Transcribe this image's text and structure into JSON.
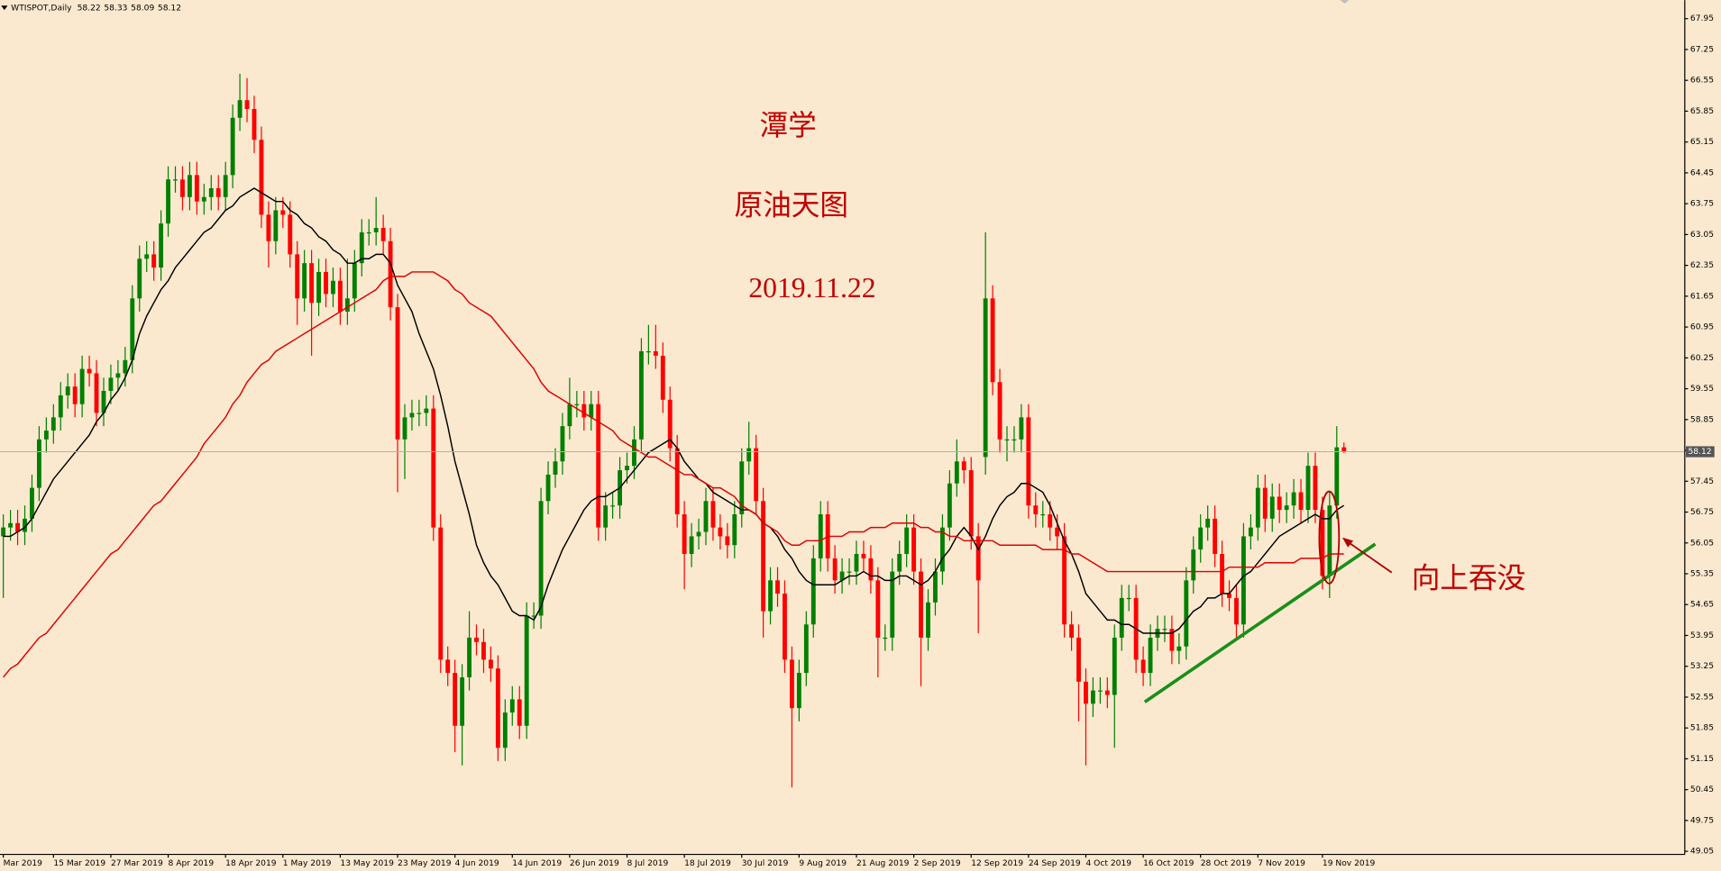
{
  "chart_data": {
    "type": "candlestick",
    "title": "WTISPOT,Daily",
    "annotations": [
      "潭学",
      "原油天图",
      "2019.11.22",
      "向上吞没"
    ],
    "up_color": "#008000",
    "down_color": "#ff0000",
    "grid": false,
    "last_price_line": true,
    "ylim": [
      48.98,
      68.37
    ],
    "yticks": [
      49.05,
      49.75,
      50.45,
      51.15,
      51.85,
      52.55,
      53.25,
      53.95,
      54.65,
      55.35,
      56.05,
      56.75,
      57.45,
      58.15,
      58.85,
      59.55,
      60.25,
      60.95,
      61.65,
      62.35,
      63.05,
      63.75,
      64.45,
      65.15,
      65.85,
      66.55,
      67.25,
      67.95
    ],
    "categories": [
      "Mar 2019",
      null,
      null,
      null,
      null,
      null,
      null,
      "15 Mar 2019",
      null,
      null,
      null,
      null,
      null,
      null,
      null,
      "27 Mar 2019",
      null,
      null,
      null,
      null,
      null,
      null,
      null,
      "8 Apr 2019",
      null,
      null,
      null,
      null,
      null,
      null,
      null,
      "18 Apr 2019",
      null,
      null,
      null,
      null,
      null,
      null,
      null,
      "1 May 2019",
      null,
      null,
      null,
      null,
      null,
      null,
      null,
      "13 May 2019",
      null,
      null,
      null,
      null,
      null,
      null,
      null,
      "23 May 2019",
      null,
      null,
      null,
      null,
      null,
      null,
      null,
      "4 Jun 2019",
      null,
      null,
      null,
      null,
      null,
      null,
      null,
      "14 Jun 2019",
      null,
      null,
      null,
      null,
      null,
      null,
      null,
      "26 Jun 2019",
      null,
      null,
      null,
      null,
      null,
      null,
      null,
      "8 Jul 2019",
      null,
      null,
      null,
      null,
      null,
      null,
      null,
      "18 Jul 2019",
      null,
      null,
      null,
      null,
      null,
      null,
      null,
      "30 Jul 2019",
      null,
      null,
      null,
      null,
      null,
      null,
      null,
      "9 Aug 2019",
      null,
      null,
      null,
      null,
      null,
      null,
      null,
      "21 Aug 2019",
      null,
      null,
      null,
      null,
      null,
      null,
      null,
      "2 Sep 2019",
      null,
      null,
      null,
      null,
      null,
      null,
      null,
      "12 Sep 2019",
      null,
      null,
      null,
      null,
      null,
      null,
      null,
      "24 Sep 2019",
      null,
      null,
      null,
      null,
      null,
      null,
      null,
      "4 Oct 2019",
      null,
      null,
      null,
      null,
      null,
      null,
      null,
      "16 Oct 2019",
      null,
      null,
      null,
      null,
      null,
      null,
      null,
      "28 Oct 2019",
      null,
      null,
      null,
      null,
      null,
      null,
      null,
      "7 Nov 2019",
      null,
      null,
      null,
      null,
      null,
      null,
      null,
      null,
      "19 Nov 2019",
      null,
      null,
      null
    ],
    "open": [
      56.2,
      56.4,
      56.5,
      56.3,
      56.6,
      57.3,
      58.4,
      58.6,
      58.9,
      59.4,
      59.6,
      59.2,
      60.0,
      59.9,
      59.0,
      59.5,
      59.8,
      59.9,
      60.2,
      61.6,
      62.5,
      62.6,
      62.3,
      63.3,
      64.3,
      64.3,
      63.9,
      64.4,
      63.8,
      63.9,
      64.1,
      63.9,
      64.4,
      65.7,
      66.1,
      65.9,
      65.2,
      63.5,
      62.9,
      63.6,
      63.5,
      62.6,
      61.6,
      62.4,
      61.5,
      62.2,
      61.7,
      62.0,
      61.3,
      61.6,
      62.4,
      63.1,
      63.1,
      63.2,
      62.9,
      61.4,
      58.4,
      58.9,
      59.0,
      59.0,
      59.1,
      56.4,
      53.4,
      53.1,
      51.9,
      53.0,
      53.9,
      53.8,
      53.4,
      53.2,
      51.4,
      52.2,
      52.5,
      51.9,
      54.4,
      54.4,
      57.0,
      57.6,
      57.9,
      58.7,
      59.2,
      59.2,
      58.9,
      59.2,
      56.4,
      56.9,
      56.9,
      57.7,
      57.8,
      58.4,
      60.4,
      60.4,
      60.3,
      59.3,
      58.2,
      56.7,
      55.8,
      56.2,
      56.3,
      57.0,
      56.4,
      56.2,
      56.0,
      56.7,
      57.9,
      58.2,
      57.0,
      54.5,
      55.2,
      54.9,
      53.4,
      52.3,
      53.1,
      54.2,
      55.7,
      56.7,
      55.7,
      55.2,
      55.4,
      55.4,
      55.8,
      55.7,
      55.2,
      53.9,
      53.9,
      55.4,
      55.8,
      56.4,
      55.4,
      53.9,
      54.7,
      55.4,
      56.4,
      57.4,
      57.9,
      57.7,
      56.2,
      58.0,
      61.6,
      59.7,
      58.4,
      58.4,
      58.4,
      58.9,
      56.9,
      56.7,
      56.7,
      56.4,
      56.2,
      54.2,
      53.9,
      52.9,
      52.4,
      52.7,
      52.7,
      52.6,
      53.9,
      54.8,
      54.8,
      53.4,
      53.1,
      53.9,
      54.1,
      54.1,
      53.6,
      53.7,
      55.2,
      55.9,
      56.4,
      56.6,
      55.8,
      54.9,
      54.8,
      54.2,
      56.2,
      56.4,
      57.3,
      56.6,
      57.1,
      56.8,
      56.9,
      57.2,
      56.8,
      57.8,
      56.8,
      55.3,
      56.9,
      58.22
    ],
    "high": [
      56.7,
      56.8,
      56.8,
      56.9,
      57.6,
      58.7,
      58.9,
      59.2,
      59.7,
      59.9,
      59.9,
      60.3,
      60.3,
      60.2,
      59.8,
      60.1,
      60.2,
      60.5,
      61.9,
      62.8,
      62.9,
      62.9,
      63.6,
      64.6,
      64.6,
      64.6,
      64.7,
      64.7,
      64.2,
      64.4,
      64.4,
      64.7,
      66.0,
      66.7,
      66.6,
      66.2,
      65.5,
      63.8,
      63.9,
      63.9,
      63.8,
      62.9,
      62.7,
      62.7,
      62.5,
      62.5,
      62.3,
      62.3,
      62.5,
      62.7,
      63.4,
      63.4,
      63.9,
      63.5,
      63.2,
      61.7,
      59.2,
      59.3,
      59.3,
      59.4,
      59.4,
      56.7,
      53.7,
      53.4,
      53.3,
      54.5,
      54.2,
      54.1,
      53.7,
      53.5,
      52.5,
      52.8,
      52.8,
      54.7,
      54.7,
      57.3,
      57.9,
      58.2,
      59.0,
      59.8,
      59.5,
      59.5,
      59.5,
      59.5,
      57.2,
      57.2,
      58.0,
      58.1,
      58.7,
      60.7,
      61.0,
      61.0,
      60.6,
      59.6,
      58.5,
      57.0,
      56.5,
      56.6,
      57.3,
      57.3,
      56.7,
      56.5,
      57.0,
      58.2,
      58.8,
      58.5,
      57.3,
      55.5,
      55.5,
      55.2,
      53.7,
      53.4,
      54.5,
      56.0,
      57.0,
      57.0,
      56.0,
      55.7,
      55.7,
      56.1,
      56.1,
      56.0,
      55.5,
      54.2,
      55.7,
      56.1,
      56.7,
      56.7,
      55.7,
      55.0,
      55.7,
      56.7,
      57.7,
      58.4,
      58.0,
      58.0,
      56.5,
      63.1,
      61.9,
      60.0,
      58.7,
      58.7,
      59.2,
      59.2,
      57.2,
      57.0,
      57.0,
      56.7,
      56.5,
      54.5,
      54.2,
      53.2,
      53.0,
      53.0,
      53.0,
      54.2,
      55.1,
      55.1,
      55.1,
      53.7,
      54.2,
      54.4,
      54.4,
      54.4,
      54.0,
      55.5,
      56.2,
      56.7,
      56.9,
      56.9,
      56.1,
      55.2,
      55.1,
      56.5,
      56.7,
      57.6,
      57.6,
      57.4,
      57.4,
      57.2,
      57.5,
      57.5,
      58.1,
      58.1,
      57.1,
      57.2,
      58.7,
      58.33
    ],
    "low": [
      54.8,
      56.1,
      56.0,
      56.0,
      56.3,
      57.0,
      58.1,
      58.3,
      58.6,
      59.1,
      58.9,
      58.9,
      59.6,
      58.7,
      58.7,
      59.2,
      59.5,
      59.6,
      59.9,
      61.3,
      62.2,
      62.0,
      62.0,
      63.0,
      64.0,
      63.6,
      63.6,
      63.5,
      63.5,
      63.6,
      63.6,
      63.6,
      64.1,
      65.4,
      65.6,
      64.9,
      63.2,
      62.3,
      62.6,
      63.2,
      62.3,
      61.0,
      61.3,
      60.3,
      61.2,
      61.4,
      61.4,
      61.0,
      61.0,
      61.3,
      62.1,
      62.8,
      62.8,
      62.6,
      61.1,
      57.2,
      57.5,
      58.6,
      58.7,
      58.7,
      56.1,
      53.1,
      52.8,
      51.3,
      51.0,
      52.7,
      53.5,
      53.1,
      52.9,
      51.1,
      51.1,
      51.9,
      51.6,
      51.6,
      54.1,
      54.1,
      56.7,
      57.3,
      57.6,
      58.4,
      58.9,
      58.6,
      58.6,
      56.1,
      56.1,
      56.6,
      56.6,
      57.4,
      57.5,
      58.1,
      60.1,
      60.0,
      59.0,
      57.9,
      56.4,
      55.0,
      55.5,
      55.9,
      56.0,
      56.1,
      55.9,
      55.7,
      55.7,
      56.4,
      57.6,
      56.7,
      53.9,
      54.2,
      54.6,
      53.1,
      50.5,
      52.0,
      52.8,
      53.9,
      55.4,
      55.4,
      54.9,
      54.9,
      55.1,
      55.1,
      55.4,
      54.9,
      53.0,
      53.6,
      53.6,
      55.1,
      55.5,
      55.1,
      52.8,
      53.6,
      54.4,
      55.1,
      56.1,
      57.1,
      57.4,
      55.9,
      54.0,
      57.6,
      59.4,
      58.1,
      57.9,
      58.1,
      58.1,
      56.6,
      56.4,
      56.4,
      56.1,
      55.9,
      53.9,
      53.6,
      52.0,
      51.0,
      52.1,
      52.4,
      52.3,
      51.4,
      53.6,
      54.5,
      53.1,
      52.8,
      52.8,
      53.6,
      53.8,
      53.3,
      53.3,
      53.4,
      54.9,
      55.6,
      56.1,
      55.5,
      54.6,
      54.5,
      53.9,
      53.9,
      55.9,
      56.1,
      56.3,
      56.3,
      56.5,
      56.5,
      56.6,
      56.5,
      56.5,
      56.5,
      55.0,
      54.8,
      56.6,
      58.09
    ],
    "close": [
      56.4,
      56.5,
      56.3,
      56.6,
      57.3,
      58.4,
      58.6,
      58.9,
      59.4,
      59.6,
      59.2,
      60.0,
      59.9,
      59.0,
      59.5,
      59.8,
      59.9,
      60.2,
      61.6,
      62.5,
      62.6,
      62.3,
      63.3,
      64.3,
      64.3,
      63.9,
      64.4,
      63.8,
      63.9,
      64.1,
      63.9,
      64.4,
      65.7,
      66.1,
      65.9,
      65.2,
      63.5,
      62.9,
      63.6,
      63.5,
      62.6,
      61.6,
      62.4,
      61.5,
      62.2,
      61.7,
      62.0,
      61.3,
      61.6,
      62.4,
      63.1,
      63.1,
      63.2,
      62.9,
      61.4,
      58.4,
      58.9,
      59.0,
      59.0,
      59.1,
      56.4,
      53.4,
      53.1,
      51.9,
      53.0,
      53.9,
      53.8,
      53.4,
      53.2,
      51.4,
      52.2,
      52.5,
      51.9,
      54.4,
      54.4,
      57.0,
      57.6,
      57.9,
      58.7,
      59.2,
      59.2,
      58.9,
      59.2,
      56.4,
      56.9,
      56.9,
      57.7,
      57.8,
      58.4,
      60.4,
      60.4,
      60.3,
      59.3,
      58.2,
      56.7,
      55.8,
      56.2,
      56.3,
      57.0,
      56.4,
      56.2,
      56.0,
      56.7,
      57.9,
      58.2,
      57.0,
      54.5,
      55.2,
      54.9,
      53.4,
      52.3,
      53.1,
      54.2,
      55.7,
      56.7,
      55.7,
      55.2,
      55.4,
      55.4,
      55.8,
      55.7,
      55.2,
      53.9,
      53.9,
      55.4,
      55.8,
      56.4,
      55.4,
      53.9,
      54.7,
      55.4,
      56.4,
      57.4,
      57.9,
      57.7,
      56.2,
      55.2,
      61.6,
      59.7,
      58.4,
      58.4,
      58.4,
      58.9,
      56.9,
      56.7,
      56.7,
      56.4,
      56.2,
      54.2,
      53.9,
      52.9,
      52.4,
      52.7,
      52.7,
      52.6,
      53.9,
      54.8,
      54.8,
      53.4,
      53.1,
      53.9,
      54.1,
      54.1,
      53.6,
      53.7,
      55.2,
      55.9,
      56.4,
      56.6,
      55.8,
      54.9,
      54.8,
      54.2,
      56.2,
      56.4,
      57.3,
      56.6,
      57.1,
      56.8,
      56.9,
      57.2,
      56.8,
      57.8,
      56.8,
      55.3,
      56.9,
      58.22,
      58.12
    ],
    "lines": [
      {
        "color": "#000000",
        "values": [
          56.2,
          56.2,
          56.3,
          56.4,
          56.6,
          56.9,
          57.2,
          57.5,
          57.7,
          57.9,
          58.1,
          58.3,
          58.5,
          58.8,
          59.0,
          59.3,
          59.5,
          59.8,
          60.2,
          60.8,
          61.2,
          61.5,
          61.8,
          62.0,
          62.3,
          62.5,
          62.7,
          62.9,
          63.1,
          63.2,
          63.4,
          63.6,
          63.7,
          63.9,
          64.0,
          64.1,
          64.0,
          63.9,
          63.8,
          63.8,
          63.6,
          63.5,
          63.3,
          63.2,
          63.0,
          62.9,
          62.7,
          62.6,
          62.4,
          62.4,
          62.5,
          62.5,
          62.6,
          62.6,
          62.4,
          61.9,
          61.6,
          61.3,
          60.8,
          60.4,
          60.0,
          59.4,
          58.7,
          57.9,
          57.3,
          56.7,
          56.0,
          55.6,
          55.3,
          55.1,
          54.8,
          54.5,
          54.4,
          54.4,
          54.3,
          54.6,
          55.1,
          55.5,
          55.9,
          56.2,
          56.5,
          56.8,
          57.0,
          57.1,
          57.1,
          57.2,
          57.3,
          57.5,
          57.7,
          57.9,
          58.1,
          58.2,
          58.3,
          58.4,
          58.2,
          57.9,
          57.7,
          57.5,
          57.4,
          57.2,
          57.1,
          57.0,
          56.9,
          56.8,
          56.8,
          56.7,
          56.5,
          56.4,
          56.2,
          55.9,
          55.7,
          55.4,
          55.2,
          55.1,
          55.1,
          55.1,
          55.1,
          55.2,
          55.3,
          55.3,
          55.4,
          55.3,
          55.3,
          55.2,
          55.2,
          55.3,
          55.3,
          55.2,
          55.1,
          55.2,
          55.4,
          55.7,
          55.9,
          56.2,
          56.4,
          56.2,
          55.9,
          56.2,
          56.6,
          56.9,
          57.1,
          57.2,
          57.4,
          57.4,
          57.3,
          57.2,
          56.9,
          56.5,
          56.1,
          55.8,
          55.4,
          54.9,
          54.7,
          54.5,
          54.3,
          54.3,
          54.2,
          54.2,
          54.1,
          54.0,
          54.0,
          54.0,
          54.0,
          54.0,
          54.1,
          54.3,
          54.5,
          54.6,
          54.8,
          54.8,
          54.9,
          54.9,
          55.1,
          55.3,
          55.4,
          55.6,
          55.8,
          56.0,
          56.2,
          56.3,
          56.4,
          56.5,
          56.6,
          56.7,
          56.6,
          56.6,
          56.8,
          56.9
        ]
      },
      {
        "color": "#e00000",
        "values": [
          53.0,
          53.2,
          53.3,
          53.5,
          53.7,
          53.9,
          54.0,
          54.2,
          54.4,
          54.6,
          54.8,
          55.0,
          55.2,
          55.4,
          55.6,
          55.8,
          55.9,
          56.1,
          56.3,
          56.5,
          56.7,
          56.9,
          57.0,
          57.2,
          57.4,
          57.6,
          57.8,
          58.0,
          58.3,
          58.5,
          58.7,
          58.9,
          59.2,
          59.4,
          59.7,
          59.9,
          60.1,
          60.2,
          60.4,
          60.5,
          60.6,
          60.7,
          60.8,
          60.9,
          61.0,
          61.1,
          61.2,
          61.3,
          61.4,
          61.5,
          61.6,
          61.7,
          61.8,
          62.0,
          62.1,
          62.1,
          62.1,
          62.2,
          62.2,
          62.2,
          62.2,
          62.1,
          62.0,
          61.8,
          61.7,
          61.5,
          61.4,
          61.3,
          61.2,
          61.0,
          60.8,
          60.6,
          60.4,
          60.2,
          60.0,
          59.7,
          59.5,
          59.4,
          59.3,
          59.2,
          59.1,
          59.0,
          58.9,
          58.8,
          58.7,
          58.6,
          58.4,
          58.3,
          58.2,
          58.1,
          58.0,
          58.0,
          57.9,
          57.8,
          57.7,
          57.6,
          57.6,
          57.5,
          57.4,
          57.3,
          57.3,
          57.2,
          57.1,
          56.9,
          56.8,
          56.7,
          56.5,
          56.4,
          56.3,
          56.1,
          56.0,
          56.0,
          56.1,
          56.1,
          56.1,
          56.2,
          56.2,
          56.2,
          56.3,
          56.3,
          56.3,
          56.4,
          56.4,
          56.4,
          56.5,
          56.5,
          56.5,
          56.5,
          56.4,
          56.4,
          56.3,
          56.3,
          56.2,
          56.2,
          56.1,
          56.1,
          56.1,
          56.1,
          56.1,
          56.0,
          56.0,
          56.0,
          56.0,
          56.0,
          56.0,
          55.9,
          55.9,
          55.9,
          55.9,
          55.8,
          55.8,
          55.7,
          55.6,
          55.5,
          55.4,
          55.4,
          55.4,
          55.4,
          55.4,
          55.4,
          55.4,
          55.4,
          55.4,
          55.4,
          55.4,
          55.4,
          55.4,
          55.4,
          55.4,
          55.4,
          55.4,
          55.5,
          55.5,
          55.5,
          55.5,
          55.5,
          55.6,
          55.6,
          55.6,
          55.6,
          55.6,
          55.7,
          55.7,
          55.7,
          55.7,
          55.8,
          55.8,
          55.8
        ]
      }
    ]
  }
}
